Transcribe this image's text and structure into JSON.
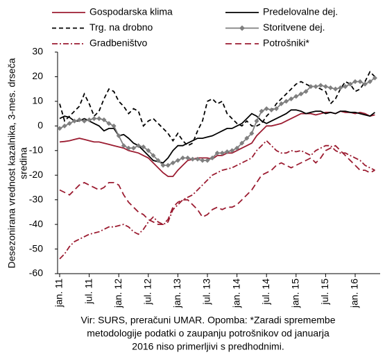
{
  "chart_data": {
    "type": "line",
    "ylabel": [
      "Desezonirana vrednost kazalnika, 3-mes. drseča",
      "sredina"
    ],
    "note": [
      "Vir: SURS, preračuni UMAR. Opomba: *Zaradi spremembe",
      "metodologije podatki o zaupanju potrošnikov od januarja",
      "2016 niso primerljivi s predhodnimi."
    ],
    "categories": [
      "jan. 11",
      null,
      null,
      null,
      null,
      null,
      "jul. 11",
      null,
      null,
      null,
      null,
      null,
      "jan. 12",
      null,
      null,
      null,
      null,
      null,
      "jul. 12",
      null,
      null,
      null,
      null,
      null,
      "jan. 13",
      null,
      null,
      null,
      null,
      null,
      "jul. 13",
      null,
      null,
      null,
      null,
      null,
      "jan. 14",
      null,
      null,
      null,
      null,
      null,
      "jul. 14",
      null,
      null,
      null,
      null,
      null,
      "jan. 15",
      null,
      null,
      null,
      null,
      null,
      "jul. 15",
      null,
      null,
      null,
      null,
      null,
      "jan. 16",
      null,
      null,
      null,
      null
    ],
    "ylim": [
      -60,
      30
    ],
    "yticks": [
      -60,
      -50,
      -40,
      -30,
      -20,
      -10,
      0,
      10,
      20,
      30
    ],
    "series": [
      {
        "name": "Gospodarska klima",
        "color": "#9b1b30",
        "dash": "none",
        "values": [
          -6.5,
          -6.3,
          -6,
          -5.5,
          -5,
          -5.5,
          -6,
          -6.5,
          -6.5,
          -7,
          -7.5,
          -8,
          -8.5,
          -9,
          -10,
          -10.5,
          -11,
          -12,
          -13,
          -15,
          -17,
          -19,
          -20.5,
          -20.5,
          -18,
          -16,
          -14,
          -13.5,
          -13,
          -13,
          -13,
          -13.5,
          -12,
          -12,
          -11,
          -11,
          -10,
          -9,
          -8,
          -7,
          -4,
          -2,
          0,
          0,
          0.5,
          1,
          2,
          3,
          4,
          5,
          5,
          5,
          4.5,
          5,
          5.5,
          5.5,
          5,
          6,
          5.5,
          5.5,
          5,
          5.5,
          5,
          4,
          4.5
        ]
      },
      {
        "name": "Predelovalne dej.",
        "color": "#000000",
        "dash": "none",
        "values": [
          3,
          4,
          3.5,
          2,
          2,
          3,
          2,
          1,
          0,
          -2,
          -1,
          -1,
          -4,
          -3.5,
          -5,
          -7,
          -8,
          -10,
          -12,
          -14,
          -14.5,
          -15,
          -13,
          -10,
          -8,
          -8,
          -7,
          -6,
          -5,
          -5,
          -4.5,
          -4,
          -3,
          -2,
          -1,
          -1,
          0,
          1,
          3,
          5,
          4,
          2,
          1,
          2,
          3,
          4,
          5,
          6.5,
          6.5,
          6,
          5,
          5.5,
          6,
          6,
          5,
          5.5,
          5,
          6,
          6,
          5.5,
          5.5,
          5,
          4.5,
          4,
          5.5
        ]
      },
      {
        "name": "Trg. na drobno",
        "color": "#000000",
        "dash": "6,4",
        "values": [
          9,
          2,
          4,
          6,
          8,
          13,
          9,
          4,
          6,
          11,
          15,
          14,
          10,
          8,
          5,
          7,
          6,
          0,
          2,
          3,
          1,
          -1,
          -3,
          -6,
          -3,
          -6,
          -8,
          -7,
          -2,
          2,
          10,
          11,
          9,
          10,
          5,
          3,
          1,
          0,
          2,
          0,
          0,
          1,
          4,
          6,
          9,
          11,
          13,
          15,
          17,
          18,
          17,
          16,
          16,
          15,
          14,
          9,
          11,
          15,
          18,
          17,
          14,
          15,
          18,
          22,
          20
        ]
      },
      {
        "name": "Storitvene dej.",
        "color": "#7f7f7f",
        "dash": "none",
        "marker": "diamond",
        "values": [
          -1,
          0,
          1,
          2,
          2.5,
          2,
          2.5,
          3,
          3,
          2.5,
          1,
          0,
          -4,
          -8,
          -9,
          -9,
          -8,
          -8.5,
          -10,
          -12,
          -14,
          -16,
          -16,
          -15,
          -14,
          -13,
          -13,
          -13.5,
          -13.5,
          -14,
          -14,
          -13,
          -11,
          -11,
          -10.5,
          -10,
          -9,
          -7,
          -5,
          -3,
          2,
          6,
          7,
          6.5,
          7,
          9,
          10,
          11,
          12,
          13,
          14,
          16,
          16,
          16.5,
          16,
          15.5,
          15,
          15.5,
          16,
          17,
          18,
          18,
          17,
          18,
          19.5
        ]
      },
      {
        "name": "Gradbeništvo",
        "color": "#9b1b30",
        "dash": "8,3,2,3",
        "values": [
          -54,
          -52,
          -49,
          -47,
          -46,
          -45,
          -44,
          -43.5,
          -43,
          -42,
          -41,
          -41,
          -40.5,
          -40,
          -41,
          -43,
          -44,
          -42,
          -39,
          -37,
          -39,
          -40,
          -39,
          -34,
          -32,
          -30,
          -29,
          -28,
          -26,
          -24,
          -22,
          -20,
          -19,
          -18,
          -17.5,
          -17,
          -16,
          -15,
          -14,
          -13,
          -10,
          -8,
          -6,
          -8,
          -10,
          -11,
          -11,
          -10,
          -10.5,
          -10,
          -11,
          -12,
          -10,
          -9,
          -8,
          -8,
          -10,
          -11,
          -11,
          -12,
          -13,
          -14,
          -16,
          -17,
          -18
        ]
      },
      {
        "name": "Potrošniki*",
        "color": "#9b1b30",
        "dash": "9,5",
        "values": [
          -26,
          -27,
          -28,
          -26,
          -24,
          -23,
          -24,
          -25,
          -26,
          -25,
          -23,
          -23,
          -24,
          -28,
          -31,
          -33,
          -35,
          -36,
          -38,
          -39,
          -40,
          -40,
          -38,
          -33,
          -31,
          -30,
          -30,
          -32,
          -34,
          -37,
          -36,
          -34,
          -33,
          -34,
          -33,
          -33,
          -32,
          -30,
          -28,
          -26,
          -23,
          -20,
          -19,
          -18,
          -16,
          -15,
          -16,
          -17,
          -16,
          -15,
          -14,
          -13,
          -15,
          -13,
          -10,
          -9,
          -8,
          -10,
          -12,
          -14,
          -16,
          -18,
          -18,
          -19,
          -18
        ]
      }
    ]
  }
}
